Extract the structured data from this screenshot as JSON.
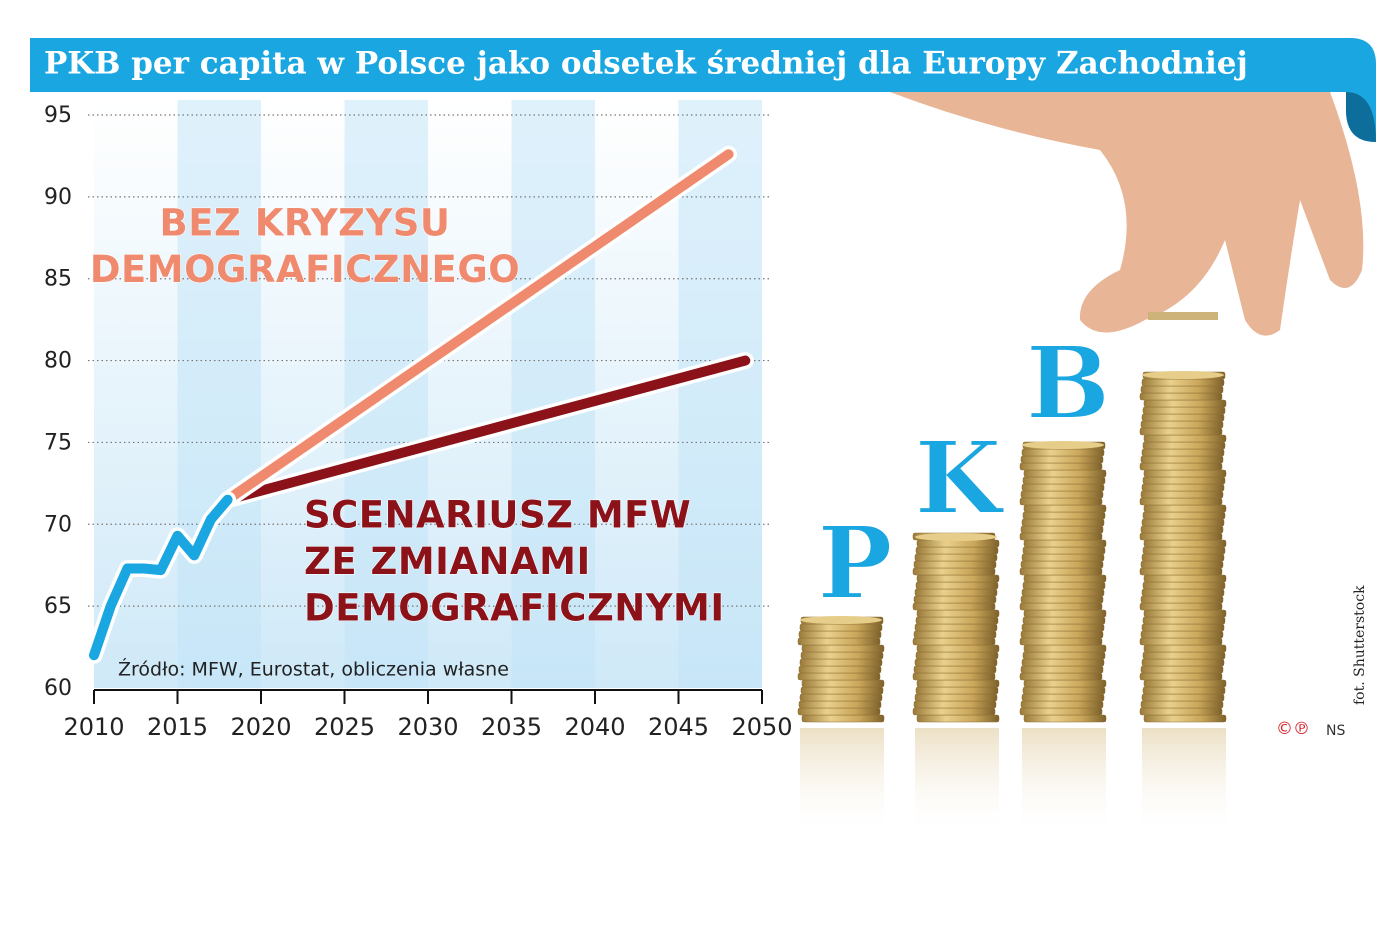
{
  "chart_data": {
    "type": "line",
    "title": "PKB per capita w Polsce jako odsetek średniej dla Europy Zachodniej",
    "source": "Źródło: MFW, Eurostat, obliczenia własne",
    "xlim": [
      2010,
      2050
    ],
    "xticks": [
      2010,
      2015,
      2020,
      2025,
      2030,
      2035,
      2040,
      2045,
      2050
    ],
    "ylim": [
      60,
      95
    ],
    "yticks": [
      60,
      65,
      70,
      75,
      80,
      85,
      90,
      95
    ],
    "grid": true,
    "series": [
      {
        "color": "#1aa6e0",
        "x": [
          2010,
          2011,
          2012,
          2013,
          2014,
          2015,
          2016,
          2017,
          2018
        ],
        "values": [
          62,
          65,
          67.3,
          67.3,
          67.2,
          69.3,
          68.1,
          70.3,
          71.5
        ]
      },
      {
        "color": "#f08a6e",
        "x": [
          2018,
          2048
        ],
        "values": [
          71.5,
          92.6
        ]
      },
      {
        "color": "#8b1219",
        "x": [
          2018,
          2049
        ],
        "values": [
          71.5,
          80
        ]
      }
    ],
    "annotations": [
      {
        "lines": [
          "BEZ KRYZYSU",
          "DEMOGRAFICZNEGO"
        ],
        "color": "#f08a6e"
      },
      {
        "lines": [
          "SCENARIUSZ MFW",
          "ZE ZMIANAMI",
          "DEMOGRAFICZNYMI"
        ],
        "color": "#8b1219"
      }
    ]
  },
  "illustration": {
    "letters": [
      "P",
      "K",
      "B"
    ],
    "photo_credit": "fot. Shutterstock",
    "author": "NS"
  }
}
